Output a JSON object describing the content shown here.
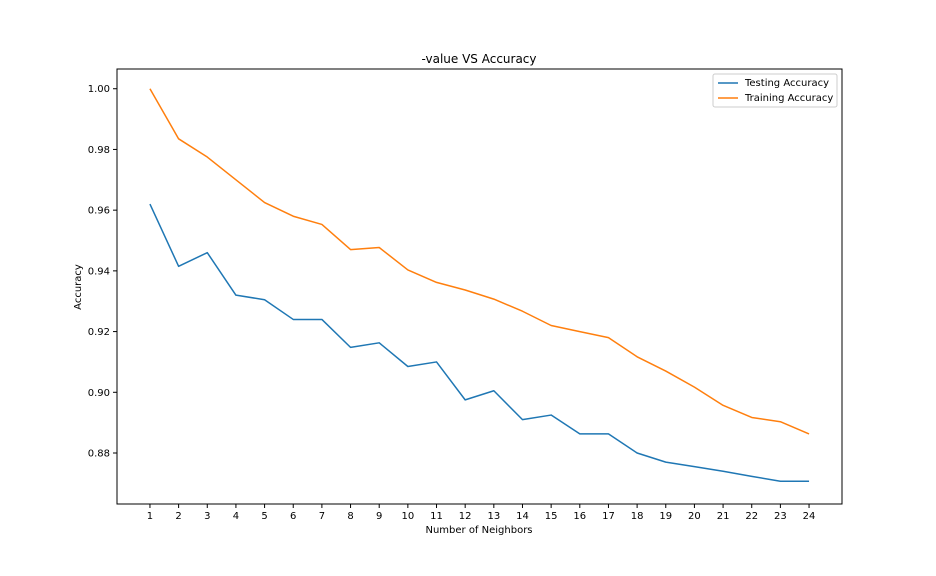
{
  "chart_data": {
    "type": "line",
    "title": "-value VS Accuracy",
    "xlabel": "Number of Neighbors",
    "ylabel": "Accuracy",
    "x": [
      1,
      2,
      3,
      4,
      5,
      6,
      7,
      8,
      9,
      10,
      11,
      12,
      13,
      14,
      15,
      16,
      17,
      18,
      19,
      20,
      21,
      22,
      23,
      24
    ],
    "xticks": [
      "1",
      "2",
      "3",
      "4",
      "5",
      "6",
      "7",
      "8",
      "9",
      "10",
      "11",
      "12",
      "13",
      "14",
      "15",
      "16",
      "17",
      "18",
      "19",
      "20",
      "21",
      "22",
      "23",
      "24"
    ],
    "yticks": [
      "0.88",
      "0.90",
      "0.92",
      "0.94",
      "0.96",
      "0.98",
      "1.00"
    ],
    "ylim": [
      0.8632,
      1.0065
    ],
    "xlim": [
      -0.15,
      25.15
    ],
    "grid": false,
    "legend_position": "upper right",
    "series": [
      {
        "name": "Testing Accuracy",
        "color": "#1f77b4",
        "values": [
          0.962,
          0.9415,
          0.946,
          0.932,
          0.9305,
          0.924,
          0.924,
          0.9148,
          0.9163,
          0.9085,
          0.91,
          0.8975,
          0.9005,
          0.891,
          0.8925,
          0.8863,
          0.8863,
          0.88,
          0.877,
          0.8755,
          0.874,
          0.8723,
          0.8707,
          0.8707
        ]
      },
      {
        "name": "Training Accuracy",
        "color": "#ff7f0e",
        "values": [
          1.0,
          0.9835,
          0.9775,
          0.97,
          0.9625,
          0.958,
          0.9553,
          0.947,
          0.9477,
          0.9403,
          0.9362,
          0.9337,
          0.9307,
          0.9267,
          0.922,
          0.92,
          0.918,
          0.9117,
          0.907,
          0.9017,
          0.8957,
          0.8917,
          0.8903,
          0.8863
        ]
      }
    ]
  }
}
